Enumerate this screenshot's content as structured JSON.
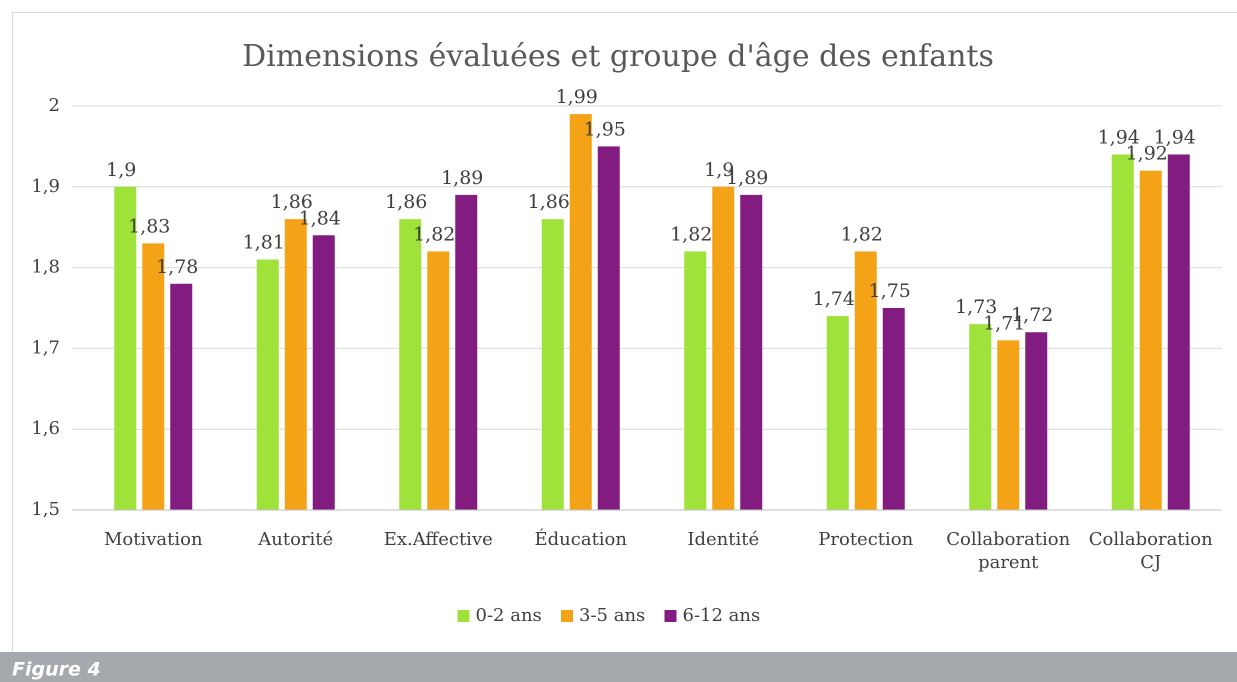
{
  "chart_data": {
    "type": "bar",
    "title": "Dimensions évaluées et groupe d'âge des enfants",
    "categories": [
      "Motivation",
      "Autorité",
      "Ex.Affective",
      "Éducation",
      "Identité",
      "Protection",
      "Collaboration parent",
      "Collaboration CJ"
    ],
    "series": [
      {
        "name": "0-2 ans",
        "color": "#9ee23a",
        "values": [
          1.9,
          1.81,
          1.86,
          1.86,
          1.82,
          1.74,
          1.73,
          1.94
        ],
        "value_labels": [
          "1,9",
          "1,81",
          "1,86",
          "1,86",
          "1,82",
          "1,74",
          "1,73",
          "1,94"
        ]
      },
      {
        "name": "3-5 ans",
        "color": "#f4a316",
        "values": [
          1.83,
          1.86,
          1.82,
          1.99,
          1.9,
          1.82,
          1.71,
          1.92
        ],
        "value_labels": [
          "1,83",
          "1,86",
          "1,82",
          "1,99",
          "1,9",
          "1,82",
          "1,71",
          "1,92"
        ]
      },
      {
        "name": "6-12 ans",
        "color": "#821c80",
        "values": [
          1.78,
          1.84,
          1.89,
          1.95,
          1.89,
          1.75,
          1.72,
          1.94
        ],
        "value_labels": [
          "1,78",
          "1,84",
          "1,89",
          "1,95",
          "1,89",
          "1,75",
          "1,72",
          "1,94"
        ]
      }
    ],
    "ylim": [
      1.5,
      2
    ],
    "yticks": [
      {
        "value": 1.5,
        "label": "1,5"
      },
      {
        "value": 1.6,
        "label": "1,6"
      },
      {
        "value": 1.7,
        "label": "1,7"
      },
      {
        "value": 1.8,
        "label": "1,8"
      },
      {
        "value": 1.9,
        "label": "1,9"
      },
      2
    ],
    "grid": true,
    "legend": "bottom"
  },
  "figure_caption": "Figure 4"
}
